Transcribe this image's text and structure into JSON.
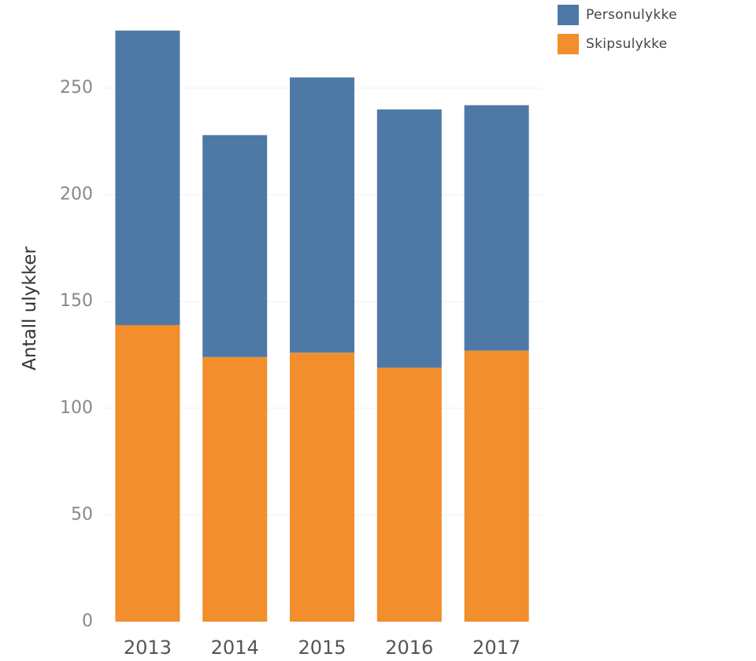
{
  "chart_data": {
    "type": "bar",
    "stacked": true,
    "categories": [
      "2013",
      "2014",
      "2015",
      "2016",
      "2017"
    ],
    "series": [
      {
        "name": "Skipsulykke",
        "color": "#f28e2b",
        "values": [
          139,
          124,
          126,
          119,
          127
        ]
      },
      {
        "name": "Personulykke",
        "color": "#4e79a7",
        "values": [
          138,
          104,
          129,
          121,
          115
        ]
      }
    ],
    "xlabel": "",
    "ylabel": "Antall ulykker",
    "ylim": [
      0,
      285
    ],
    "yticks": [
      0,
      50,
      100,
      150,
      200,
      250
    ],
    "grid": true,
    "legend_position": "top-right"
  }
}
